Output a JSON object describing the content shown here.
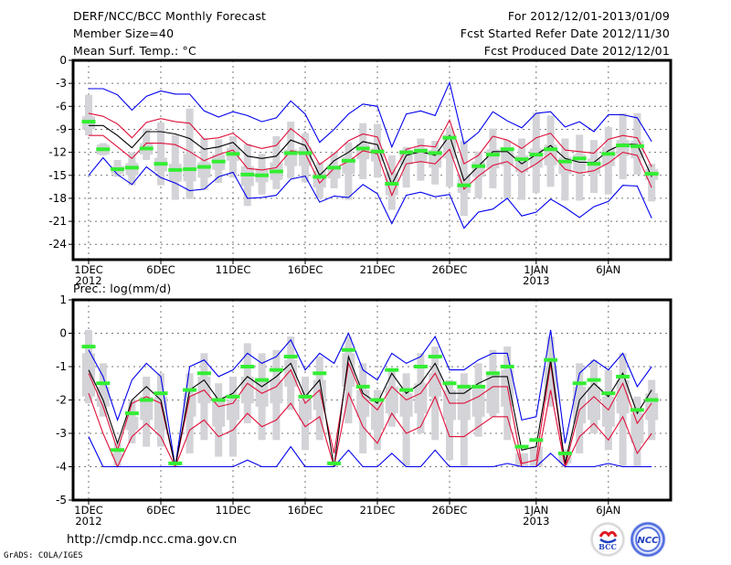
{
  "header": {
    "title": "DERF/NCC/BCC Monthly Forecast",
    "member_size": "Member Size=40",
    "variable_temp": "Mean Surf. Temp.: °C",
    "period": "For 2012/12/01-2013/01/09",
    "started": "Fcst Started Refer Date 2012/11/30",
    "produced": "Fcst Produced Date 2012/12/01"
  },
  "footer": {
    "url": "http://cmdp.ncc.cma.gov.cn",
    "grads": "GrADS: COLA/IGES",
    "logos": [
      "BCC",
      "NCC"
    ]
  },
  "colors": {
    "envelope": "#0000ee",
    "spread": "#e0103a",
    "mean": "#000000",
    "observed": "#33ee33",
    "box": "#d3d3d8",
    "grid": "#777777"
  },
  "chart_data": [
    {
      "type": "line",
      "title": "Mean Surf. Temp.: °C",
      "xlabel": "",
      "ylabel": "°C",
      "ylim": [
        -26,
        0
      ],
      "yticks": [
        0,
        -3,
        -6,
        -9,
        -12,
        -15,
        -18,
        -21,
        -24
      ],
      "ytick_labels": [
        "0",
        "-3",
        "-6",
        "-9",
        "-12",
        "-15",
        "-18",
        "-21",
        "-24"
      ],
      "xtick_days": [
        0,
        5,
        10,
        15,
        20,
        25,
        31,
        36
      ],
      "xtick_labels": [
        "1DEC",
        "6DEC",
        "11DEC",
        "16DEC",
        "21DEC",
        "26DEC",
        "1JAN",
        "6JAN"
      ],
      "xtick_sublabels": {
        "0": "2012",
        "31": "2013"
      },
      "grid": true,
      "days": 40,
      "series": [
        {
          "name": "ensemble max",
          "color_key": "envelope",
          "values": [
            -3.7,
            -3.7,
            -4.5,
            -6.5,
            -4.7,
            -4.0,
            -4.4,
            -4.4,
            -6.6,
            -7.4,
            -6.7,
            -7.2,
            -8.0,
            -7.5,
            -5.3,
            -7.0,
            -10.7,
            -9.0,
            -7.0,
            -5.7,
            -6.0,
            -11.3,
            -7.0,
            -6.6,
            -7.2,
            -2.9,
            -10.9,
            -9.4,
            -6.7,
            -7.9,
            -8.8,
            -6.9,
            -6.7,
            -8.7,
            -8.0,
            -9.3,
            -7.1,
            -7.1,
            -7.5,
            -10.6
          ]
        },
        {
          "name": "upper spread",
          "color_key": "spread",
          "values": [
            -6.9,
            -7.3,
            -8.3,
            -10.1,
            -8.1,
            -7.6,
            -8.0,
            -8.2,
            -10.3,
            -10.1,
            -9.5,
            -11.0,
            -11.5,
            -11.1,
            -8.9,
            -10.4,
            -13.6,
            -12.2,
            -10.5,
            -9.6,
            -10.0,
            -14.9,
            -11.6,
            -11.1,
            -11.3,
            -7.8,
            -13.5,
            -12.4,
            -9.9,
            -10.4,
            -11.5,
            -10.1,
            -9.5,
            -11.7,
            -11.9,
            -12.1,
            -10.3,
            -9.8,
            -10.1,
            -13.9
          ]
        },
        {
          "name": "ensemble mean",
          "color_key": "mean",
          "values": [
            -8.5,
            -8.5,
            -9.8,
            -11.4,
            -9.3,
            -9.3,
            -9.6,
            -10.2,
            -11.6,
            -11.3,
            -10.7,
            -12.5,
            -12.8,
            -12.5,
            -10.4,
            -11.1,
            -15.0,
            -13.1,
            -12.0,
            -10.6,
            -11.0,
            -16.2,
            -12.4,
            -11.9,
            -12.4,
            -9.8,
            -15.7,
            -13.8,
            -11.9,
            -11.9,
            -13.5,
            -12.3,
            -11.1,
            -12.8,
            -13.3,
            -13.3,
            -11.8,
            -10.9,
            -11.0,
            -15.2
          ]
        },
        {
          "name": "lower spread",
          "color_key": "spread",
          "values": [
            -9.8,
            -9.8,
            -11.3,
            -12.8,
            -10.8,
            -10.8,
            -11.0,
            -11.9,
            -13.1,
            -12.3,
            -11.7,
            -14.1,
            -14.3,
            -14.0,
            -11.8,
            -12.1,
            -16.0,
            -14.1,
            -13.2,
            -11.8,
            -12.2,
            -17.6,
            -13.5,
            -13.2,
            -13.5,
            -11.6,
            -16.8,
            -15.1,
            -13.7,
            -13.2,
            -14.6,
            -13.5,
            -12.1,
            -14.2,
            -14.7,
            -14.4,
            -13.4,
            -12.0,
            -12.4,
            -16.6
          ]
        },
        {
          "name": "ensemble min",
          "color_key": "envelope",
          "values": [
            -15.0,
            -12.7,
            -14.9,
            -16.2,
            -13.9,
            -15.3,
            -16.0,
            -17.0,
            -16.8,
            -15.2,
            -14.6,
            -18.0,
            -17.9,
            -17.6,
            -15.5,
            -15.1,
            -18.5,
            -17.7,
            -17.9,
            -16.2,
            -17.4,
            -21.3,
            -17.6,
            -17.2,
            -17.8,
            -17.5,
            -21.9,
            -19.8,
            -19.4,
            -18.0,
            -20.3,
            -19.8,
            -18.1,
            -19.2,
            -20.5,
            -19.1,
            -18.4,
            -16.3,
            -16.4,
            -20.6
          ]
        },
        {
          "name": "observed",
          "color_key": "observed",
          "values": [
            -8.0,
            -11.6,
            -14.2,
            -14.0,
            -11.5,
            -13.5,
            -14.3,
            -14.2,
            -13.9,
            -13.2,
            -12.2,
            -14.9,
            -15.0,
            -14.5,
            -12.1,
            -12.1,
            -15.2,
            -14.0,
            -13.1,
            -11.5,
            -11.9,
            -16.1,
            -12.0,
            -11.8,
            -12.1,
            -10.1,
            -16.3,
            -13.8,
            -12.3,
            -11.6,
            -12.9,
            -12.3,
            -11.6,
            -13.2,
            -12.8,
            -13.5,
            -12.2,
            -11.1,
            -11.2,
            -14.8
          ]
        },
        {
          "name": "box",
          "color_key": "box",
          "whisker_max": [
            -4.5,
            -10.8,
            -13.0,
            -12.0,
            -8.9,
            -8.1,
            -9.7,
            -6.3,
            -10.1,
            -10.3,
            -9.9,
            -10.9,
            -12.2,
            -9.9,
            -8.0,
            -9.5,
            -13.3,
            -12.0,
            -10.7,
            -8.2,
            -8.3,
            -12.4,
            -11.3,
            -10.2,
            -10.5,
            -8.8,
            -10.5,
            -11.9,
            -8.9,
            -10.4,
            -10.2,
            -6.8,
            -7.2,
            -10.2,
            -9.7,
            -10.4,
            -8.7,
            -6.9,
            -6.9,
            -13.5
          ]
        },
        {
          "name": "box_range",
          "color_key": "box",
          "q3": [
            -7.3,
            -11.0,
            -13.8,
            -13.4,
            -10.8,
            -12.7,
            -13.5,
            -12.2,
            -13.3,
            -12.3,
            -11.4,
            -13.8,
            -14.1,
            -13.3,
            -11.6,
            -11.3,
            -14.4,
            -13.8,
            -12.6,
            -10.9,
            -11.5,
            -14.7,
            -11.7,
            -11.4,
            -11.7,
            -9.7,
            -14.8,
            -13.2,
            -11.6,
            -11.3,
            -12.4,
            -11.5,
            -11.0,
            -12.6,
            -12.3,
            -12.8,
            -11.3,
            -10.4,
            -10.5,
            -14.2
          ],
          "q1": [
            -9.0,
            -12.3,
            -14.8,
            -15.0,
            -12.3,
            -14.5,
            -15.8,
            -15.8,
            -15.3,
            -14.3,
            -13.1,
            -16.4,
            -15.9,
            -15.6,
            -13.8,
            -13.8,
            -16.6,
            -15.4,
            -14.8,
            -12.9,
            -13.2,
            -17.6,
            -13.6,
            -13.2,
            -14.0,
            -12.8,
            -17.3,
            -15.2,
            -14.1,
            -13.7,
            -14.6,
            -14.0,
            -13.7,
            -14.8,
            -14.4,
            -14.8,
            -13.8,
            -12.5,
            -12.8,
            -15.6
          ],
          "whisker_min": [
            -9.8,
            -12.4,
            -15.2,
            -16.3,
            -13.0,
            -16.3,
            -18.2,
            -18.1,
            -16.9,
            -16.0,
            -15.3,
            -19.0,
            -17.5,
            -16.8,
            -15.4,
            -15.9,
            -18.0,
            -16.7,
            -18.2,
            -15.5,
            -15.3,
            -19.5,
            -16.6,
            -15.7,
            -16.2,
            -16.5,
            -20.3,
            -18.0,
            -16.7,
            -18.1,
            -18.2,
            -17.3,
            -16.5,
            -18.3,
            -18.3,
            -17.3,
            -17.5,
            -15.5,
            -14.9,
            -18.4
          ]
        }
      ]
    },
    {
      "type": "line",
      "title": "Prec.: log(mm/d)",
      "xlabel": "",
      "ylabel": "log(mm/d)",
      "ylim": [
        -5,
        1
      ],
      "yticks": [
        1,
        0,
        -1,
        -2,
        -3,
        -4,
        -5
      ],
      "ytick_labels": [
        "1",
        "0",
        "-1",
        "-2",
        "-3",
        "-4",
        "-5"
      ],
      "xtick_days": [
        0,
        5,
        10,
        15,
        20,
        25,
        31,
        36
      ],
      "xtick_labels": [
        "1DEC",
        "6DEC",
        "11DEC",
        "16DEC",
        "21DEC",
        "26DEC",
        "1JAN",
        "6JAN"
      ],
      "xtick_sublabels": {
        "0": "2012",
        "31": "2013"
      },
      "grid": true,
      "days": 40,
      "series": [
        {
          "name": "ensemble max",
          "color_key": "envelope",
          "values": [
            -0.5,
            -1.3,
            -2.6,
            -1.4,
            -0.9,
            -1.3,
            -4.0,
            -1.0,
            -0.8,
            -1.3,
            -1.1,
            -0.6,
            -0.9,
            -0.7,
            -0.2,
            -1.1,
            -0.6,
            -0.9,
            0.0,
            -1.1,
            -1.4,
            -0.6,
            -0.9,
            -0.7,
            -0.1,
            -1.1,
            -1.1,
            -0.8,
            -0.6,
            -0.6,
            -2.6,
            -2.5,
            0.1,
            -3.3,
            -1.2,
            -0.8,
            -1.1,
            -0.6,
            -1.6,
            -1.0
          ]
        },
        {
          "name": "upper spread",
          "color_key": "spread",
          "values": [
            -1.2,
            -2.2,
            -3.5,
            -2.1,
            -1.9,
            -2.1,
            -4.0,
            -1.9,
            -1.7,
            -2.2,
            -2.1,
            -1.5,
            -1.8,
            -1.6,
            -1.1,
            -2.1,
            -1.7,
            -3.6,
            -0.9,
            -1.9,
            -2.3,
            -1.6,
            -2.0,
            -1.8,
            -1.2,
            -2.1,
            -2.1,
            -1.9,
            -1.6,
            -1.6,
            -3.9,
            -3.8,
            -0.9,
            -4.0,
            -2.3,
            -1.9,
            -2.3,
            -1.5,
            -2.7,
            -2.1
          ]
        },
        {
          "name": "ensemble mean",
          "color_key": "mean",
          "values": [
            -1.1,
            -2.0,
            -3.3,
            -2.0,
            -1.6,
            -2.0,
            -4.0,
            -1.7,
            -1.4,
            -2.0,
            -1.8,
            -1.3,
            -1.6,
            -1.3,
            -0.9,
            -1.9,
            -1.4,
            -4.0,
            -0.7,
            -1.8,
            -2.1,
            -1.2,
            -1.8,
            -1.5,
            -0.9,
            -1.8,
            -1.8,
            -1.5,
            -1.3,
            -1.3,
            -3.5,
            -3.4,
            -0.8,
            -3.9,
            -2.0,
            -1.5,
            -1.9,
            -1.2,
            -2.4,
            -1.7
          ]
        },
        {
          "name": "lower spread",
          "color_key": "spread",
          "values": [
            -1.8,
            -3.0,
            -4.0,
            -3.1,
            -2.7,
            -3.1,
            -4.0,
            -2.9,
            -2.6,
            -3.1,
            -2.9,
            -2.4,
            -2.8,
            -2.6,
            -2.1,
            -2.8,
            -2.5,
            -4.0,
            -1.8,
            -2.8,
            -3.3,
            -2.4,
            -3.0,
            -2.8,
            -1.9,
            -3.1,
            -3.1,
            -2.8,
            -2.5,
            -2.5,
            -4.0,
            -4.0,
            -1.7,
            -4.0,
            -3.1,
            -2.7,
            -3.2,
            -2.5,
            -3.6,
            -3.0
          ]
        },
        {
          "name": "ensemble min",
          "color_key": "envelope",
          "values": [
            -3.1,
            -4.0,
            -4.0,
            -4.0,
            -4.0,
            -4.0,
            -4.0,
            -4.0,
            -4.0,
            -4.0,
            -4.0,
            -3.8,
            -4.0,
            -4.0,
            -3.4,
            -4.0,
            -4.0,
            -4.0,
            -3.5,
            -4.0,
            -4.0,
            -3.6,
            -4.0,
            -4.0,
            -3.5,
            -4.0,
            -4.0,
            -4.0,
            -4.0,
            -3.9,
            -4.0,
            -4.0,
            -3.6,
            -4.0,
            -4.0,
            -4.0,
            -3.9,
            -4.0,
            -4.0,
            -4.0
          ]
        },
        {
          "name": "observed",
          "color_key": "observed",
          "values": [
            -0.4,
            -1.5,
            -3.5,
            -2.4,
            -2.0,
            -1.8,
            -3.9,
            -1.7,
            -1.2,
            -2.0,
            -1.9,
            -1.0,
            -1.4,
            -1.1,
            -0.7,
            -1.9,
            -1.2,
            -3.9,
            -0.5,
            -1.6,
            -2.0,
            -1.1,
            -1.7,
            -1.0,
            -0.7,
            -1.5,
            -1.6,
            -1.6,
            -1.2,
            -1.0,
            -3.4,
            -3.2,
            -0.8,
            -3.6,
            -1.5,
            -1.4,
            -1.8,
            -1.3,
            -2.3,
            -2.0
          ]
        },
        {
          "name": "box_range",
          "color_key": "box",
          "whisker_max": [
            0.1,
            -0.9,
            -3.3,
            -2.0,
            -1.3,
            -1.2,
            -3.9,
            -1.2,
            -0.6,
            -1.5,
            -1.3,
            -0.3,
            -0.6,
            -0.5,
            -0.1,
            -1.3,
            -0.7,
            -3.9,
            -0.1,
            -0.9,
            -1.7,
            -1.1,
            -1.2,
            -0.6,
            -0.4,
            -1.4,
            -1.2,
            -0.9,
            -0.5,
            -0.4,
            -3.6,
            -3.4,
            -0.1,
            -3.5,
            -0.9,
            -0.8,
            -1.1,
            -0.6,
            -1.9,
            -1.4
          ],
          "q3": [
            -0.6,
            -1.6,
            -3.6,
            -2.5,
            -1.9,
            -1.9,
            -4.0,
            -1.8,
            -1.3,
            -2.0,
            -2.0,
            -1.3,
            -1.4,
            -1.4,
            -0.8,
            -2.0,
            -1.4,
            -4.0,
            -0.6,
            -1.7,
            -2.1,
            -1.6,
            -1.8,
            -1.5,
            -1.2,
            -1.7,
            -1.6,
            -1.6,
            -1.2,
            -1.1,
            -3.6,
            -3.4,
            -1.0,
            -3.6,
            -1.6,
            -1.6,
            -1.9,
            -1.4,
            -2.4,
            -1.8
          ],
          "q1": [
            -1.9,
            -2.2,
            -3.7,
            -2.9,
            -2.6,
            -2.9,
            -4.0,
            -2.5,
            -2.1,
            -2.8,
            -2.6,
            -2.1,
            -2.2,
            -2.1,
            -1.6,
            -2.6,
            -2.3,
            -4.0,
            -1.6,
            -2.5,
            -2.9,
            -2.4,
            -2.5,
            -2.4,
            -1.9,
            -2.6,
            -2.6,
            -2.5,
            -2.4,
            -2.2,
            -4.0,
            -4.0,
            -2.0,
            -3.9,
            -2.7,
            -2.6,
            -2.8,
            -2.4,
            -3.3,
            -2.6
          ],
          "whisker_min": [
            -2.1,
            -2.5,
            -4.0,
            -3.3,
            -3.4,
            -3.4,
            -4.0,
            -3.6,
            -3.2,
            -3.7,
            -3.7,
            -2.7,
            -3.2,
            -3.2,
            -2.3,
            -3.5,
            -3.2,
            -4.0,
            -2.7,
            -3.6,
            -3.5,
            -2.8,
            -4.0,
            -3.0,
            -3.2,
            -3.8,
            -4.0,
            -3.1,
            -2.5,
            -3.2,
            -4.0,
            -4.0,
            -2.2,
            -4.0,
            -3.6,
            -3.0,
            -3.5,
            -4.0,
            -4.0,
            -3.2
          ]
        }
      ]
    }
  ]
}
